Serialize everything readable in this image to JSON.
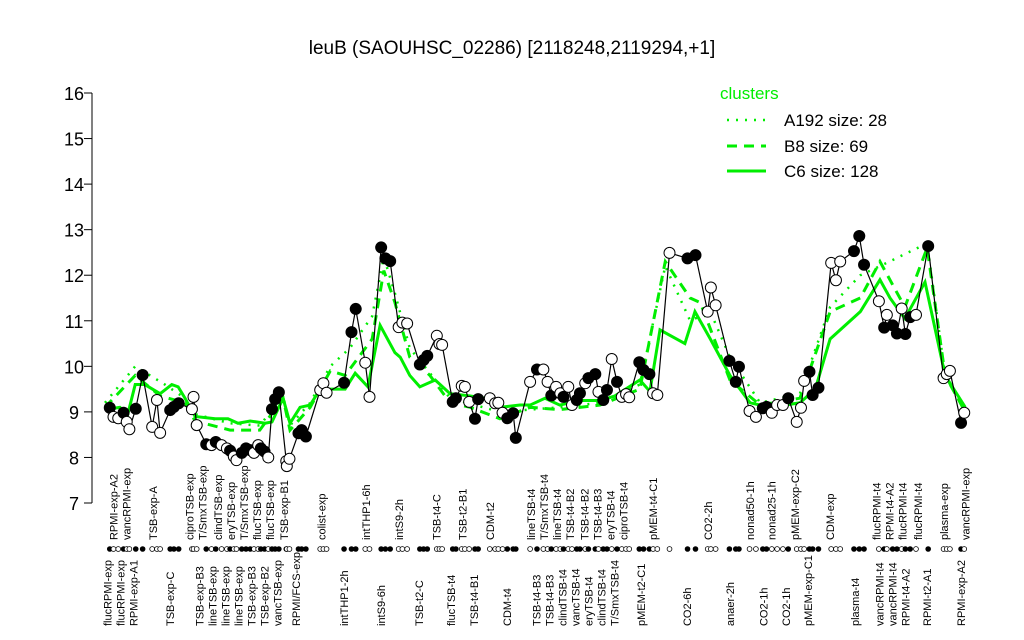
{
  "chart_data": {
    "type": "line",
    "title": "leuB (SAOUHSC_02286) [2118248,2119294,+1]",
    "xlabel": "",
    "ylabel": "",
    "ylim": [
      7,
      16
    ],
    "yticks": [
      7,
      8,
      9,
      10,
      11,
      12,
      13,
      14,
      15,
      16
    ],
    "xlim": [
      0,
      163
    ],
    "grid": false,
    "legend": {
      "title": "clusters",
      "placement": "top-right",
      "color": "#00ee00",
      "entries": [
        {
          "label": "A192 size: 28",
          "style": "dotted"
        },
        {
          "label": "B8 size: 69",
          "style": "dashed"
        },
        {
          "label": "C6 size: 128",
          "style": "solid"
        }
      ]
    },
    "colors": {
      "points": "#000000",
      "clusters": "#00ee00"
    },
    "points": [
      [
        0.9,
        9.09,
        1
      ],
      [
        1.6,
        8.89,
        0
      ],
      [
        2.5,
        8.86,
        0
      ],
      [
        3.5,
        8.98,
        1
      ],
      [
        4.1,
        8.78,
        0
      ],
      [
        4.6,
        8.62,
        0
      ],
      [
        5.8,
        9.07,
        1
      ],
      [
        7.1,
        9.81,
        1
      ],
      [
        8.9,
        8.67,
        0
      ],
      [
        9.8,
        9.26,
        0
      ],
      [
        10.4,
        8.54,
        0
      ],
      [
        12.3,
        9.04,
        1
      ],
      [
        13.0,
        9.11,
        1
      ],
      [
        13.9,
        9.19,
        1
      ],
      [
        16.4,
        9.06,
        0
      ],
      [
        16.7,
        9.33,
        0
      ],
      [
        17.3,
        8.71,
        0
      ],
      [
        19.1,
        8.29,
        1
      ],
      [
        20.1,
        8.27,
        0
      ],
      [
        20.9,
        8.34,
        1
      ],
      [
        22.0,
        8.27,
        0
      ],
      [
        23.0,
        8.2,
        0
      ],
      [
        23.6,
        8.15,
        1
      ],
      [
        24.3,
        8.02,
        0
      ],
      [
        24.8,
        7.94,
        0
      ],
      [
        25.8,
        8.1,
        1
      ],
      [
        26.6,
        8.2,
        1
      ],
      [
        27.4,
        8.16,
        1
      ],
      [
        28.1,
        8.1,
        0
      ],
      [
        28.9,
        8.27,
        0
      ],
      [
        29.4,
        8.2,
        1
      ],
      [
        30.1,
        8.13,
        1
      ],
      [
        30.8,
        8.0,
        0
      ],
      [
        31.5,
        9.06,
        1
      ],
      [
        32.1,
        9.28,
        1
      ],
      [
        32.8,
        9.43,
        1
      ],
      [
        34.2,
        7.92,
        0
      ],
      [
        34.3,
        7.81,
        0
      ],
      [
        34.8,
        7.97,
        0
      ],
      [
        36.5,
        8.53,
        1
      ],
      [
        37.1,
        8.6,
        1
      ],
      [
        37.9,
        8.46,
        1
      ],
      [
        40.6,
        9.48,
        0
      ],
      [
        41.2,
        9.63,
        0
      ],
      [
        41.8,
        9.42,
        0
      ],
      [
        45.1,
        9.64,
        1
      ],
      [
        46.5,
        10.75,
        1
      ],
      [
        47.3,
        11.26,
        1
      ],
      [
        49.1,
        10.08,
        0
      ],
      [
        49.9,
        9.33,
        0
      ],
      [
        52.1,
        12.61,
        1
      ],
      [
        52.9,
        12.37,
        1
      ],
      [
        53.8,
        12.31,
        1
      ],
      [
        55.4,
        10.86,
        0
      ],
      [
        56.1,
        10.96,
        0
      ],
      [
        57.0,
        10.94,
        0
      ],
      [
        59.4,
        10.04,
        1
      ],
      [
        60.1,
        10.14,
        1
      ],
      [
        60.8,
        10.23,
        1
      ],
      [
        62.6,
        10.67,
        0
      ],
      [
        63.1,
        10.49,
        0
      ],
      [
        63.6,
        10.47,
        0
      ],
      [
        65.6,
        9.22,
        1
      ],
      [
        66.2,
        9.3,
        1
      ],
      [
        67.3,
        9.57,
        0
      ],
      [
        67.9,
        9.55,
        0
      ],
      [
        68.7,
        9.22,
        0
      ],
      [
        69.8,
        8.85,
        1
      ],
      [
        70.4,
        9.28,
        1
      ],
      [
        72.6,
        9.3,
        0
      ],
      [
        73.6,
        9.19,
        0
      ],
      [
        74.2,
        9.2,
        0
      ],
      [
        75.0,
        8.98,
        0
      ],
      [
        75.9,
        8.86,
        1
      ],
      [
        77.0,
        8.97,
        1
      ],
      [
        77.5,
        8.43,
        1
      ],
      [
        80.2,
        9.66,
        0
      ],
      [
        81.5,
        9.93,
        1
      ],
      [
        82.7,
        9.93,
        0
      ],
      [
        83.5,
        9.66,
        0
      ],
      [
        84.2,
        9.36,
        1
      ],
      [
        85.1,
        9.55,
        0
      ],
      [
        85.9,
        9.41,
        0
      ],
      [
        86.5,
        9.33,
        1
      ],
      [
        87.4,
        9.55,
        0
      ],
      [
        88.1,
        9.15,
        0
      ],
      [
        89.0,
        9.26,
        1
      ],
      [
        89.6,
        9.41,
        1
      ],
      [
        90.6,
        9.63,
        0
      ],
      [
        91.2,
        9.74,
        1
      ],
      [
        92.5,
        9.83,
        1
      ],
      [
        93.1,
        9.44,
        0
      ],
      [
        94.0,
        9.26,
        1
      ],
      [
        94.7,
        9.48,
        1
      ],
      [
        95.6,
        10.16,
        0
      ],
      [
        96.6,
        9.66,
        1
      ],
      [
        97.5,
        9.33,
        0
      ],
      [
        98.3,
        9.39,
        0
      ],
      [
        98.9,
        9.32,
        0
      ],
      [
        100.8,
        10.09,
        1
      ],
      [
        101.6,
        9.92,
        1
      ],
      [
        102.7,
        9.83,
        1
      ],
      [
        103.4,
        9.41,
        0
      ],
      [
        104.2,
        9.37,
        0
      ],
      [
        106.5,
        12.49,
        0
      ],
      [
        109.9,
        12.37,
        1
      ],
      [
        111.4,
        12.44,
        1
      ],
      [
        113.7,
        11.2,
        0
      ],
      [
        114.3,
        11.73,
        0
      ],
      [
        115.2,
        11.34,
        0
      ],
      [
        117.8,
        10.12,
        1
      ],
      [
        119.0,
        9.66,
        1
      ],
      [
        119.6,
        9.99,
        1
      ],
      [
        121.6,
        9.02,
        0
      ],
      [
        122.8,
        8.89,
        0
      ],
      [
        124.1,
        9.08,
        1
      ],
      [
        124.8,
        9.11,
        1
      ],
      [
        125.8,
        8.98,
        0
      ],
      [
        126.8,
        9.15,
        0
      ],
      [
        127.9,
        9.15,
        0
      ],
      [
        128.9,
        9.3,
        1
      ],
      [
        130.5,
        8.78,
        0
      ],
      [
        131.3,
        9.09,
        0
      ],
      [
        131.9,
        9.68,
        0
      ],
      [
        132.9,
        9.88,
        1
      ],
      [
        133.5,
        9.37,
        1
      ],
      [
        134.6,
        9.53,
        1
      ],
      [
        137.0,
        12.27,
        0
      ],
      [
        137.9,
        11.89,
        0
      ],
      [
        138.7,
        12.3,
        0
      ],
      [
        141.3,
        12.53,
        1
      ],
      [
        142.3,
        12.86,
        1
      ],
      [
        143.2,
        12.23,
        1
      ],
      [
        146.0,
        11.43,
        0
      ],
      [
        147.0,
        10.85,
        1
      ],
      [
        147.5,
        11.13,
        0
      ],
      [
        148.6,
        10.9,
        1
      ],
      [
        149.4,
        10.72,
        1
      ],
      [
        150.3,
        11.27,
        0
      ],
      [
        151.0,
        10.71,
        1
      ],
      [
        151.9,
        11.08,
        1
      ],
      [
        153.0,
        11.13,
        0
      ],
      [
        155.3,
        12.64,
        1
      ],
      [
        158.2,
        9.74,
        0
      ],
      [
        158.8,
        9.83,
        0
      ],
      [
        159.4,
        9.9,
        0
      ],
      [
        161.5,
        8.76,
        1
      ],
      [
        162.1,
        8.98,
        0
      ]
    ],
    "series": [
      {
        "name": "A192 size: 28",
        "style": "dotted",
        "x": [
          0,
          5.7,
          11.3,
          15.1,
          17.0,
          23.6,
          29.2,
          33.6,
          34.9,
          38.7,
          42.5,
          46.2,
          50.4,
          52.6,
          54.7,
          57.5,
          65.1,
          74.5,
          85.8,
          93.4,
          100.9,
          105.7,
          110.4,
          114.2,
          117.9,
          123.6,
          131.1,
          136.8,
          142.5,
          146.2,
          155.1,
          158.5,
          162.3
        ],
        "values": [
          9.2,
          10.0,
          9.6,
          9.3,
          8.95,
          8.75,
          8.7,
          9.35,
          8.7,
          9.2,
          10.0,
          10.4,
          11.1,
          12.4,
          11.6,
          10.4,
          9.3,
          9.0,
          9.1,
          9.2,
          9.6,
          12.2,
          11.0,
          11.2,
          10.2,
          9.2,
          9.4,
          11.3,
          12.0,
          12.2,
          12.7,
          9.8,
          9.0
        ]
      },
      {
        "name": "B8 size: 69",
        "style": "dashed",
        "x": [
          0,
          5.7,
          10.4,
          15.1,
          17.0,
          23.6,
          29.2,
          33.6,
          34.9,
          38.7,
          42.5,
          45.3,
          50.4,
          52.6,
          54.7,
          57.5,
          61.3,
          65.1,
          68.9,
          74.5,
          80.2,
          85.8,
          93.4,
          100.9,
          105.7,
          110.4,
          112.3,
          117.9,
          123.6,
          131.1,
          136.8,
          142.5,
          146.2,
          150.9,
          155.1,
          158.5,
          162.3
        ],
        "values": [
          9.1,
          9.8,
          9.35,
          9.2,
          8.8,
          8.6,
          8.6,
          9.3,
          8.6,
          9.1,
          9.9,
          9.8,
          10.6,
          12.1,
          11.4,
          10.2,
          9.8,
          9.2,
          9.1,
          8.85,
          9.1,
          9.05,
          9.15,
          9.5,
          12.3,
          11.5,
          11.4,
          9.7,
          9.15,
          9.3,
          11.2,
          11.5,
          12.3,
          11.3,
          12.6,
          9.8,
          9.0
        ]
      },
      {
        "name": "C6 size: 128",
        "style": "solid",
        "x": [
          0,
          2.8,
          4.3,
          5.7,
          7.5,
          10.4,
          12.6,
          13.8,
          15.1,
          17.0,
          20.8,
          23.2,
          25.1,
          27.4,
          30.2,
          31.5,
          33.6,
          34.9,
          36.8,
          38.7,
          40.6,
          45.3,
          47.2,
          49.6,
          51.9,
          54.7,
          55.7,
          57.5,
          59.4,
          62.3,
          65.1,
          68.9,
          71.7,
          74.5,
          78.3,
          80.2,
          83.0,
          85.8,
          89.6,
          93.4,
          96.2,
          100.9,
          102.8,
          104.7,
          109.4,
          111.3,
          114.2,
          117.9,
          121.7,
          125.5,
          131.1,
          134.0,
          136.8,
          142.5,
          146.2,
          148.1,
          150.9,
          154.7,
          158.5,
          162.3
        ],
        "values": [
          9.05,
          9.1,
          8.95,
          9.6,
          9.6,
          9.4,
          9.6,
          9.55,
          9.3,
          8.9,
          8.85,
          8.85,
          8.75,
          8.8,
          8.75,
          8.78,
          9.3,
          8.75,
          9.1,
          9.15,
          9.5,
          9.5,
          9.85,
          9.55,
          10.9,
          10.3,
          10.2,
          9.8,
          9.55,
          9.7,
          9.4,
          9.35,
          9.3,
          9.1,
          9.15,
          9.15,
          9.3,
          9.15,
          9.25,
          9.25,
          9.35,
          9.7,
          9.45,
          10.8,
          10.5,
          11.2,
          10.6,
          9.8,
          9.2,
          9.1,
          9.2,
          9.5,
          10.6,
          11.2,
          11.9,
          11.5,
          11.05,
          11.85,
          9.8,
          9.1
        ]
      }
    ],
    "xtick_labels_top": [
      {
        "x": 2.1,
        "label": "RPMI-exp-A2"
      },
      {
        "x": 3.6,
        "label": "vancRPMI-exp"
      },
      {
        "x": 9.1,
        "label": "TSB-exp-A"
      },
      {
        "x": 16.0,
        "label": "ciproTSB-exp"
      },
      {
        "x": 18.3,
        "label": "T/SmxTSB-exp"
      },
      {
        "x": 21.3,
        "label": "clindTSB-exp"
      },
      {
        "x": 24.0,
        "label": "eryTSB-exp"
      },
      {
        "x": 26.8,
        "label": "T/SmxTSB-exp"
      },
      {
        "x": 28.1,
        "label": "flucTSB-exp"
      },
      {
        "x": 30.8,
        "label": "flucTSB-exp"
      },
      {
        "x": 33.8,
        "label": "TSB-exp-B1"
      },
      {
        "x": 40.8,
        "label": "colist-exp"
      },
      {
        "x": 49.2,
        "label": "intTHP1-6h"
      },
      {
        "x": 55.5,
        "label": "intS9-2h"
      },
      {
        "x": 62.5,
        "label": "TSB-t4-C"
      },
      {
        "x": 67.4,
        "label": "TSB-t2-B1"
      },
      {
        "x": 72.6,
        "label": "CDM-t2"
      },
      {
        "x": 80.4,
        "label": "lineTSB-t4"
      },
      {
        "x": 82.8,
        "label": "T/SmxTSB-t4"
      },
      {
        "x": 85.3,
        "label": "lineTSB-t4"
      },
      {
        "x": 87.7,
        "label": "TSB-t4-B2"
      },
      {
        "x": 90.8,
        "label": "TSB-t4-B2"
      },
      {
        "x": 93.4,
        "label": "TSB-t4-B3"
      },
      {
        "x": 95.3,
        "label": "eryTSB-t4"
      },
      {
        "x": 97.2,
        "label": "ciproTSB-t4"
      },
      {
        "x": 103.4,
        "label": "pMEM-t4-C1"
      },
      {
        "x": 113.8,
        "label": "CO2-2h"
      },
      {
        "x": 121.7,
        "label": "nonad50-1h"
      },
      {
        "x": 125.7,
        "label": "nonad25-1h"
      },
      {
        "x": 130.2,
        "label": "pMEM-exp-C2"
      },
      {
        "x": 136.8,
        "label": "CDM-exp"
      },
      {
        "x": 146.2,
        "label": "flucRPMI-t4"
      },
      {
        "x": 147.4,
        "label": "RPMI-t4-A2"
      },
      {
        "x": 150.4,
        "label": "flucRPMI-t4"
      },
      {
        "x": 153.4,
        "label": "flucRPMI-t4"
      },
      {
        "x": 158.3,
        "label": "plasma-exp"
      },
      {
        "x": 162.3,
        "label": "vancRPMI-exp"
      }
    ],
    "xtick_labels_bottom": [
      {
        "x": 0.6,
        "label": "flucRPMI-exp"
      },
      {
        "x": 2.8,
        "label": "flucRPMI-exp"
      },
      {
        "x": 5.3,
        "label": "RPMI-exp-A1"
      },
      {
        "x": 12.3,
        "label": "TSB-exp-C"
      },
      {
        "x": 18.7,
        "label": "TSB-exp-B3"
      },
      {
        "x": 20.9,
        "label": "lineTSB-exp"
      },
      {
        "x": 23.6,
        "label": "lineTSB-exp"
      },
      {
        "x": 25.8,
        "label": "lineTSB-exp"
      },
      {
        "x": 26.6,
        "label": "TSB-exp-B3"
      },
      {
        "x": 28.9,
        "label": "TSB-exp-B2"
      },
      {
        "x": 31.5,
        "label": "vancTSB-exp"
      },
      {
        "x": 36.0,
        "label": "RPMI/FCS-exp"
      },
      {
        "x": 45.1,
        "label": "intTHP1-2h"
      },
      {
        "x": 52.1,
        "label": "intS9-6h"
      },
      {
        "x": 59.2,
        "label": "TSB-t2-C"
      },
      {
        "x": 65.3,
        "label": "flucTSB-t4"
      },
      {
        "x": 69.6,
        "label": "TSB-t4-B1"
      },
      {
        "x": 75.8,
        "label": "CDM-t4"
      },
      {
        "x": 81.7,
        "label": "TSB-t4-B3"
      },
      {
        "x": 84.3,
        "label": "TSB-t4-B3"
      },
      {
        "x": 86.2,
        "label": "clindTSB-t4"
      },
      {
        "x": 88.7,
        "label": "vancTSB-t4"
      },
      {
        "x": 90.9,
        "label": "eryTSB-t4"
      },
      {
        "x": 93.6,
        "label": "clindTSB-t4"
      },
      {
        "x": 96.0,
        "label": "T/SmxTSB-t4"
      },
      {
        "x": 101.1,
        "label": "pMEM-t2-C1"
      },
      {
        "x": 109.8,
        "label": "CO2-6h"
      },
      {
        "x": 117.9,
        "label": "anaer-2h"
      },
      {
        "x": 124.2,
        "label": "CO2-1h"
      },
      {
        "x": 128.5,
        "label": "CO2-1h"
      },
      {
        "x": 132.6,
        "label": "pMEM-exp-C1"
      },
      {
        "x": 141.5,
        "label": "plasma-t4"
      },
      {
        "x": 146.8,
        "label": "vancRPMI-t4"
      },
      {
        "x": 148.1,
        "label": "vancRPMI-t4"
      },
      {
        "x": 150.8,
        "label": "RPMI-t4-A2"
      },
      {
        "x": 155.1,
        "label": "RPMI-t2-A1"
      },
      {
        "x": 161.5,
        "label": "RPMI-exp-A2"
      }
    ]
  }
}
